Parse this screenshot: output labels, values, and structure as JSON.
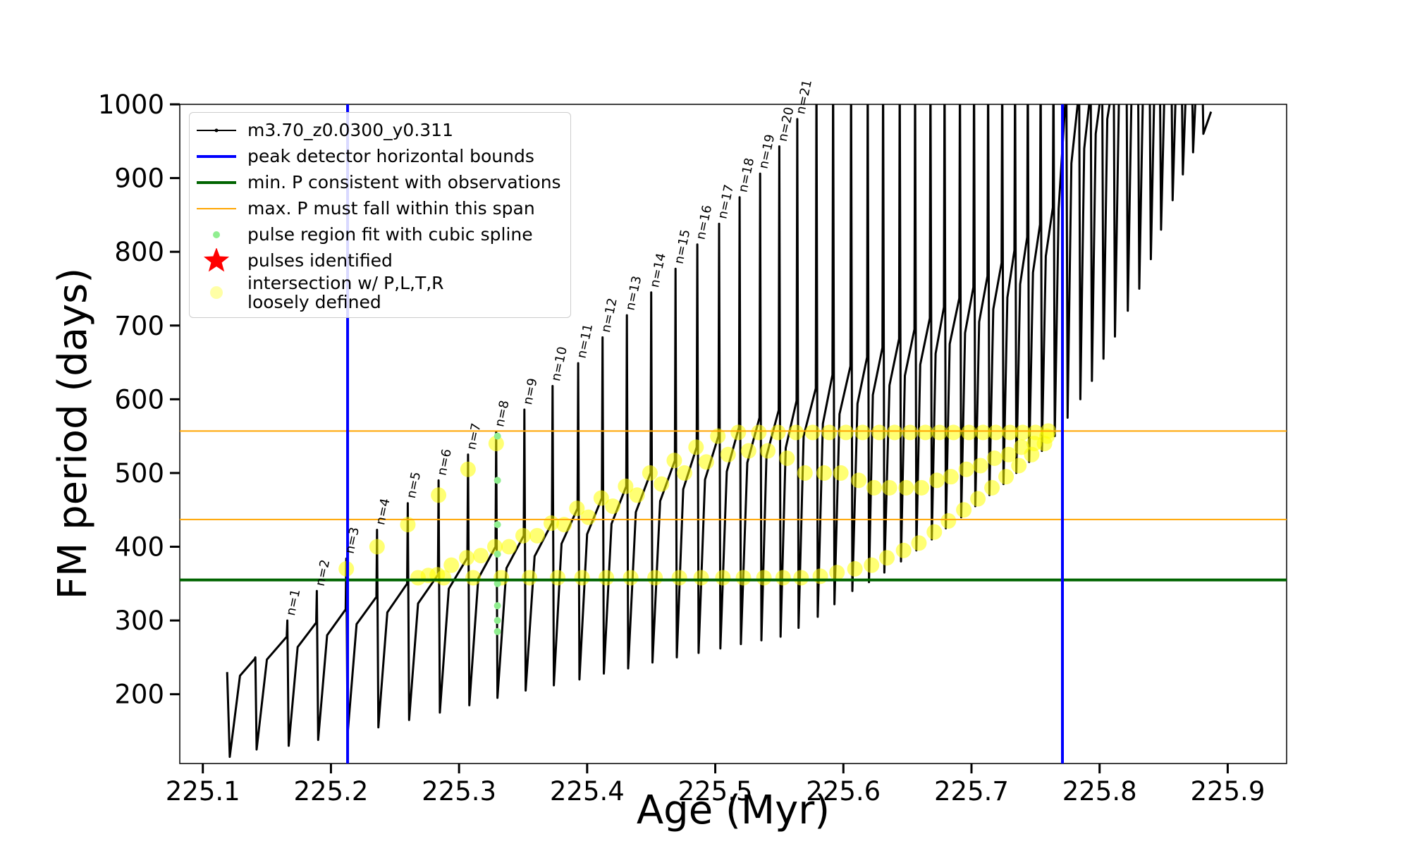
{
  "chart_data": {
    "type": "line",
    "xlabel": "Age (Myr)",
    "ylabel": "FM period (days)",
    "xlim": [
      225.082,
      225.946
    ],
    "ylim": [
      106,
      1000
    ],
    "xticks": [
      225.1,
      225.2,
      225.3,
      225.4,
      225.5,
      225.6,
      225.7,
      225.8,
      225.9
    ],
    "yticks": [
      200,
      300,
      400,
      500,
      600,
      700,
      800,
      900,
      1000
    ],
    "legend": "upper left",
    "series": [
      {
        "name": "m3.70_z0.0300_y0.311",
        "color": "#000000",
        "style": "line",
        "x": [
          225.119,
          225.121,
          225.129,
          225.1405,
          225.141,
          225.142,
          225.15,
          225.1655,
          225.166,
          225.167,
          225.174,
          225.1885,
          225.189,
          225.19,
          225.197,
          225.2115,
          225.212,
          225.213,
          225.22,
          225.2355,
          225.236,
          225.237,
          225.244,
          225.2595,
          225.26,
          225.261,
          225.268,
          225.2835,
          225.284,
          225.285,
          225.292,
          225.3065,
          225.307,
          225.308,
          225.315,
          225.3285,
          225.329,
          225.33,
          225.337,
          225.3505,
          225.351,
          225.352,
          225.359,
          225.3725,
          225.373,
          225.374,
          225.38,
          225.3925,
          225.393,
          225.394,
          225.4,
          225.4115,
          225.412,
          225.413,
          225.419,
          225.4305,
          225.431,
          225.432,
          225.438,
          225.4495,
          225.45,
          225.451,
          225.457,
          225.4685,
          225.469,
          225.47,
          225.475,
          225.4855,
          225.486,
          225.487,
          225.492,
          225.5025,
          225.503,
          225.504,
          225.509,
          225.5185,
          225.519,
          225.52,
          225.525,
          225.5345,
          225.535,
          225.536,
          225.54,
          225.5495,
          225.55,
          225.551,
          225.555,
          225.5635,
          225.564,
          225.565,
          225.569,
          225.5785,
          225.579,
          225.58,
          225.584,
          225.5915,
          225.592,
          225.593,
          225.597,
          225.6055,
          225.606,
          225.607,
          225.611,
          225.6185,
          225.619,
          225.62,
          225.623,
          225.6305,
          225.631,
          225.632,
          225.636,
          225.6435,
          225.644,
          225.645,
          225.648,
          225.6555,
          225.656,
          225.657,
          225.66,
          225.6675,
          225.668,
          225.669,
          225.672,
          225.6785,
          225.679,
          225.68,
          225.683,
          225.6905,
          225.691,
          225.692,
          225.695,
          225.7015,
          225.702,
          225.703,
          225.706,
          225.7125,
          225.713,
          225.714,
          225.717,
          225.7235,
          225.724,
          225.725,
          225.728,
          225.7335,
          225.734,
          225.735,
          225.738,
          225.7435,
          225.744,
          225.745,
          225.748,
          225.7535,
          225.754,
          225.755,
          225.758,
          225.7635,
          225.764,
          225.765,
          225.768,
          225.7735,
          225.774,
          225.775,
          225.778,
          225.7835,
          225.784,
          225.785,
          225.788,
          225.7925,
          225.793,
          225.794,
          225.797,
          225.8015,
          225.802,
          225.803,
          225.806,
          225.8105,
          225.811,
          225.812,
          225.815,
          225.8205,
          225.821,
          225.822,
          225.825,
          225.8295,
          225.83,
          225.831,
          225.834,
          225.8385,
          225.839,
          225.84,
          225.843,
          225.8465,
          225.847,
          225.848,
          225.851,
          225.8555,
          225.856,
          225.857,
          225.86,
          225.8635,
          225.864,
          225.865,
          225.868,
          225.8715,
          225.872,
          225.873,
          225.876,
          225.8795,
          225.88,
          225.881,
          225.887
        ],
        "values": [
          230,
          115,
          225,
          248,
          250,
          125,
          247,
          278,
          300,
          130,
          264,
          297,
          340,
          138,
          280,
          315,
          384,
          145,
          295,
          332,
          423,
          155,
          311,
          350,
          459,
          165,
          323,
          362,
          490,
          175,
          343,
          385,
          525,
          185,
          357,
          400,
          556,
          195,
          371,
          415,
          586,
          205,
          387,
          432,
          618,
          212,
          404,
          452,
          649,
          220,
          417,
          466,
          684,
          228,
          431,
          482,
          714,
          235,
          447,
          500,
          745,
          243,
          462,
          517,
          777,
          250,
          478,
          535,
          810,
          256,
          491,
          550,
          838,
          262,
          502,
          562,
          874,
          268,
          514,
          575,
          906,
          273,
          523,
          585,
          943,
          278,
          534,
          598,
          980,
          290,
          550,
          615,
          1060,
          305,
          567,
          633,
          1060,
          322,
          580,
          645,
          1060,
          340,
          594,
          657,
          1060,
          352,
          606,
          670,
          1060,
          365,
          619,
          682,
          1060,
          380,
          632,
          695,
          1060,
          395,
          647,
          710,
          1060,
          410,
          662,
          725,
          1060,
          425,
          675,
          737,
          1060,
          440,
          690,
          752,
          1060,
          455,
          705,
          767,
          1060,
          470,
          722,
          785,
          1060,
          485,
          738,
          802,
          1060,
          500,
          756,
          820,
          1060,
          515,
          772,
          837,
          1060,
          530,
          794,
          860,
          1060,
          550,
          858,
          1010,
          1060,
          575,
          920,
          1010,
          1060,
          600,
          940,
          1010,
          1060,
          625,
          960,
          1020,
          1060,
          655,
          980,
          1030,
          1060,
          685,
          1000,
          1040,
          1060,
          720,
          1020,
          1050,
          1060,
          750,
          1030,
          1055,
          1060,
          790,
          1040,
          1055,
          1060,
          830,
          1045,
          1055,
          1060,
          870,
          1050,
          1055,
          1060,
          905,
          1050,
          1055,
          1060,
          935,
          1050,
          1055,
          1060,
          960,
          990
        ]
      },
      {
        "name": "peak detector horizontal bounds",
        "color": "#0000ff",
        "style": "vline",
        "vlines": [
          225.213,
          225.771
        ]
      },
      {
        "name": "min. P consistent with observations",
        "color": "#006400",
        "style": "hline",
        "hlines": [
          355
        ]
      },
      {
        "name": "max. P must fall within this span",
        "color": "#ffa500",
        "style": "span",
        "hlines": [
          437,
          557
        ]
      },
      {
        "name": "pulse region fit with cubic spline",
        "color": "#90ee90",
        "style": "dot",
        "x": [
          225.33,
          225.33,
          225.33,
          225.33,
          225.33,
          225.33,
          225.33,
          225.33
        ],
        "values": [
          285,
          300,
          320,
          350,
          390,
          430,
          490,
          550
        ]
      },
      {
        "name": "pulses identified",
        "color": "#ff0000",
        "style": "star",
        "x": [],
        "values": []
      },
      {
        "name": "intersection w/ P,L,T,R\nloosely defined",
        "color": "#ffff00",
        "style": "blob",
        "x": [
          225.212,
          225.236,
          225.26,
          225.284,
          225.307,
          225.329,
          225.268,
          225.276,
          225.283,
          225.288,
          225.294,
          225.306,
          225.311,
          225.317,
          225.328,
          225.333,
          225.339,
          225.35,
          225.355,
          225.361,
          225.372,
          225.377,
          225.382,
          225.392,
          225.396,
          225.401,
          225.411,
          225.415,
          225.42,
          225.43,
          225.434,
          225.439,
          225.449,
          225.453,
          225.458,
          225.468,
          225.472,
          225.476,
          225.485,
          225.489,
          225.493,
          225.502,
          225.506,
          225.51,
          225.518,
          225.522,
          225.526,
          225.534,
          225.538,
          225.541,
          225.549,
          225.553,
          225.556,
          225.563,
          225.567,
          225.57,
          225.576,
          225.582,
          225.585,
          225.589,
          225.595,
          225.598,
          225.602,
          225.609,
          225.612,
          225.615,
          225.622,
          225.624,
          225.628,
          225.634,
          225.636,
          225.64,
          225.647,
          225.649,
          225.652,
          225.659,
          225.661,
          225.664,
          225.671,
          225.673,
          225.675,
          225.682,
          225.684,
          225.686,
          225.694,
          225.696,
          225.698,
          225.705,
          225.707,
          225.709,
          225.716,
          225.718,
          225.719,
          225.727,
          225.729,
          225.73,
          225.737,
          225.739,
          225.74,
          225.747,
          225.749,
          225.75,
          225.757,
          225.759,
          225.76
        ],
        "values": [
          370,
          400,
          430,
          470,
          505,
          540,
          358,
          361,
          362,
          358,
          375,
          385,
          358,
          388,
          400,
          358,
          400,
          415,
          358,
          415,
          432,
          358,
          430,
          452,
          358,
          440,
          466,
          358,
          455,
          482,
          358,
          470,
          500,
          358,
          485,
          517,
          358,
          500,
          535,
          358,
          515,
          550,
          358,
          525,
          555,
          358,
          530,
          555,
          358,
          530,
          555,
          358,
          520,
          555,
          358,
          500,
          555,
          360,
          500,
          555,
          365,
          500,
          555,
          370,
          490,
          555,
          375,
          480,
          555,
          385,
          480,
          555,
          395,
          480,
          555,
          405,
          480,
          555,
          420,
          490,
          555,
          435,
          495,
          555,
          450,
          505,
          555,
          465,
          510,
          555,
          480,
          520,
          555,
          495,
          525,
          555,
          510,
          535,
          555,
          525,
          540,
          555,
          540,
          550,
          557
        ]
      }
    ],
    "annotations": [
      {
        "text": "n=1",
        "x": 225.166,
        "y": 300
      },
      {
        "text": "n=2",
        "x": 225.189,
        "y": 340
      },
      {
        "text": "n=3",
        "x": 225.212,
        "y": 384
      },
      {
        "text": "n=4",
        "x": 225.236,
        "y": 423
      },
      {
        "text": "n=5",
        "x": 225.26,
        "y": 459
      },
      {
        "text": "n=6",
        "x": 225.284,
        "y": 490
      },
      {
        "text": "n=7",
        "x": 225.307,
        "y": 525
      },
      {
        "text": "n=8",
        "x": 225.329,
        "y": 556
      },
      {
        "text": "n=9",
        "x": 225.351,
        "y": 586
      },
      {
        "text": "n=10",
        "x": 225.373,
        "y": 618
      },
      {
        "text": "n=11",
        "x": 225.393,
        "y": 649
      },
      {
        "text": "n=12",
        "x": 225.412,
        "y": 684
      },
      {
        "text": "n=13",
        "x": 225.431,
        "y": 714
      },
      {
        "text": "n=14",
        "x": 225.45,
        "y": 745
      },
      {
        "text": "n=15",
        "x": 225.469,
        "y": 777
      },
      {
        "text": "n=16",
        "x": 225.486,
        "y": 810
      },
      {
        "text": "n=17",
        "x": 225.503,
        "y": 838
      },
      {
        "text": "n=18",
        "x": 225.519,
        "y": 874
      },
      {
        "text": "n=19",
        "x": 225.535,
        "y": 906
      },
      {
        "text": "n=20",
        "x": 225.55,
        "y": 943
      },
      {
        "text": "n=21",
        "x": 225.564,
        "y": 980
      }
    ]
  }
}
